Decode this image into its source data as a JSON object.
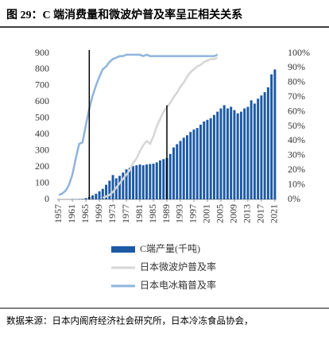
{
  "chart_data": {
    "type": "bar_line_combo",
    "title": "图 29：C 端消费量和微波炉普及率呈正相关关系",
    "source": "数据来源：日本内阁府经济社会研究所，日本冷冻食品协会，",
    "x": [
      1957,
      1958,
      1959,
      1960,
      1961,
      1962,
      1963,
      1964,
      1965,
      1966,
      1967,
      1968,
      1969,
      1970,
      1971,
      1972,
      1973,
      1974,
      1975,
      1976,
      1977,
      1978,
      1979,
      1980,
      1981,
      1982,
      1983,
      1984,
      1985,
      1986,
      1987,
      1988,
      1989,
      1990,
      1991,
      1992,
      1993,
      1994,
      1995,
      1996,
      1997,
      1998,
      1999,
      2000,
      2001,
      2002,
      2003,
      2004,
      2005,
      2006,
      2007,
      2008,
      2009,
      2010,
      2011,
      2012,
      2013,
      2014,
      2015,
      2016,
      2017,
      2018,
      2019,
      2020,
      2021
    ],
    "xlim": [
      1956.5,
      2021.5
    ],
    "xticks": [
      1957,
      1961,
      1965,
      1969,
      1973,
      1977,
      1981,
      1985,
      1989,
      1993,
      1997,
      2001,
      2005,
      2009,
      2013,
      2017,
      2021
    ],
    "ylim": [
      0,
      900
    ],
    "yticks": [
      0,
      100,
      200,
      300,
      400,
      500,
      600,
      700,
      800,
      900
    ],
    "y2lim": [
      0,
      100
    ],
    "y2ticks": [
      {
        "value": 0,
        "label": "0%"
      },
      {
        "value": 10,
        "label": "10%"
      },
      {
        "value": 20,
        "label": "20%"
      },
      {
        "value": 30,
        "label": "30%"
      },
      {
        "value": 40,
        "label": "40%"
      },
      {
        "value": 50,
        "label": "50%"
      },
      {
        "value": 60,
        "label": "60%"
      },
      {
        "value": 70,
        "label": "70%"
      },
      {
        "value": 80,
        "label": "80%"
      },
      {
        "value": 90,
        "label": "90%"
      },
      {
        "value": 100,
        "label": "100%"
      }
    ],
    "series": [
      {
        "name": "C端产量(千吨)",
        "kind": "bar",
        "color": "#1c5aa6",
        "values": [
          null,
          null,
          null,
          null,
          1,
          1,
          2,
          3,
          8,
          15,
          25,
          35,
          50,
          65,
          90,
          115,
          150,
          130,
          145,
          165,
          185,
          195,
          205,
          210,
          215,
          210,
          215,
          218,
          220,
          228,
          240,
          248,
          255,
          280,
          320,
          340,
          360,
          380,
          395,
          415,
          430,
          440,
          460,
          480,
          490,
          500,
          520,
          540,
          560,
          580,
          560,
          570,
          550,
          530,
          540,
          560,
          570,
          610,
          590,
          620,
          640,
          660,
          690,
          770,
          800
        ]
      },
      {
        "name": "日本微波炉普及率",
        "kind": "line",
        "axis": "y2",
        "color": "#d6d6d6",
        "values": [
          null,
          null,
          null,
          null,
          null,
          null,
          null,
          null,
          null,
          null,
          null,
          null,
          null,
          1,
          2,
          3,
          5,
          8,
          11,
          14,
          17,
          20,
          25,
          28,
          33,
          37,
          40,
          38,
          43,
          50,
          55,
          60,
          63,
          66,
          70,
          73,
          77,
          80,
          84,
          87,
          89,
          91,
          92,
          94,
          95,
          96,
          96,
          97,
          null,
          null,
          null,
          null,
          null,
          null,
          null,
          null,
          null,
          null,
          null,
          null,
          null,
          null,
          null,
          null,
          null
        ]
      },
      {
        "name": "日本电冰箱普及率",
        "kind": "line",
        "axis": "y2",
        "color": "#8fb4dc",
        "values": [
          3,
          4,
          6,
          10,
          17,
          28,
          38,
          39,
          51,
          62,
          71,
          78,
          84,
          89,
          91,
          94,
          96,
          97,
          98,
          98,
          99,
          99,
          99,
          99,
          99,
          98,
          99,
          98,
          98,
          98,
          98,
          98,
          98,
          98,
          98,
          98,
          98,
          98,
          98,
          98,
          98,
          98,
          98,
          98,
          98,
          98,
          98,
          99,
          null,
          null,
          null,
          null,
          null,
          null,
          null,
          null,
          null,
          null,
          null,
          null,
          null,
          null,
          null,
          null,
          null
        ]
      }
    ],
    "reference_lines": [
      {
        "x": 1966,
        "y": 920
      },
      {
        "x": 1989,
        "y": 580
      }
    ]
  }
}
